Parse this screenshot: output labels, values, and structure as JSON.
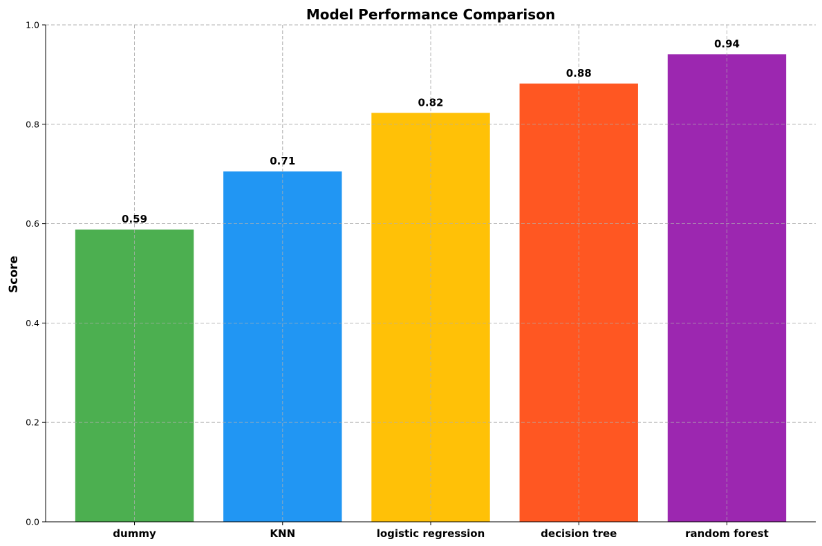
{
  "chart_data": {
    "type": "bar",
    "title": "Model Performance Comparison",
    "xlabel": "",
    "ylabel": "Score",
    "categories": [
      "dummy",
      "KNN",
      "logistic regression",
      "decision tree",
      "random forest"
    ],
    "values": [
      0.588,
      0.705,
      0.823,
      0.882,
      0.941
    ],
    "value_labels": [
      "0.59",
      "0.71",
      "0.82",
      "0.88",
      "0.94"
    ],
    "colors": [
      "#4CAF50",
      "#2196F3",
      "#FFC107",
      "#FF5722",
      "#9C27B0"
    ],
    "ylim": [
      0,
      1.0
    ],
    "yticks": [
      0.0,
      0.2,
      0.4,
      0.6,
      0.8,
      1.0
    ],
    "ytick_labels": [
      "0.0",
      "0.2",
      "0.4",
      "0.6",
      "0.8",
      "1.0"
    ],
    "grid": true
  }
}
